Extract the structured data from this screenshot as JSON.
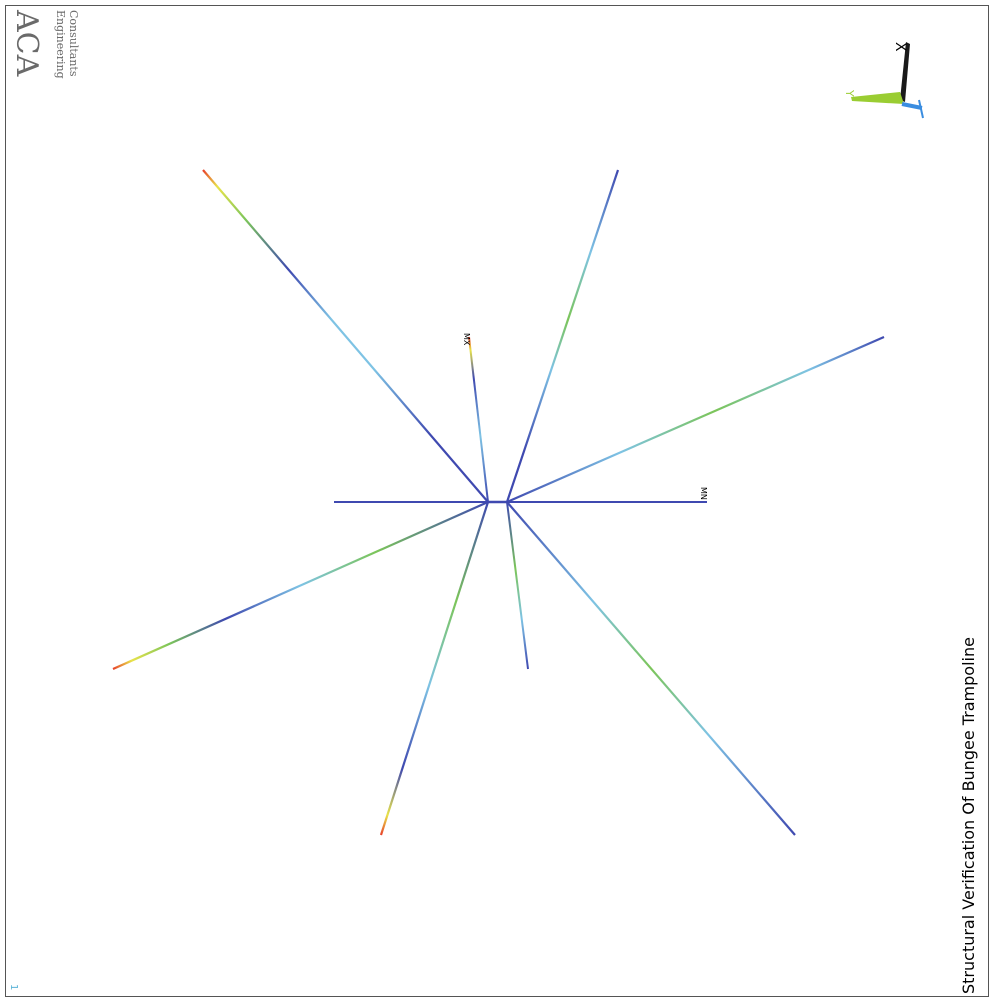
{
  "logo": {
    "company": "ACA",
    "line1": "Engineering",
    "line2": "Consultants"
  },
  "title": "Structural Verification Of Bungee Trampoline",
  "labels": {
    "max": "MX",
    "min": "MN",
    "frame_number": "1"
  },
  "triad": {
    "x_label": "X",
    "y_label": "Y",
    "z_label": "Z"
  },
  "colors": {
    "low": "#3f49b0",
    "mid_low": "#7ec3e4",
    "mid": "#7cc55a",
    "mid_high": "#e8e34a",
    "high": "#e8402a",
    "triad_x": "#1a1a1a",
    "triad_y": "#9acd32",
    "triad_z": "#3a8de0",
    "frame_number": "#5bb4d8"
  }
}
